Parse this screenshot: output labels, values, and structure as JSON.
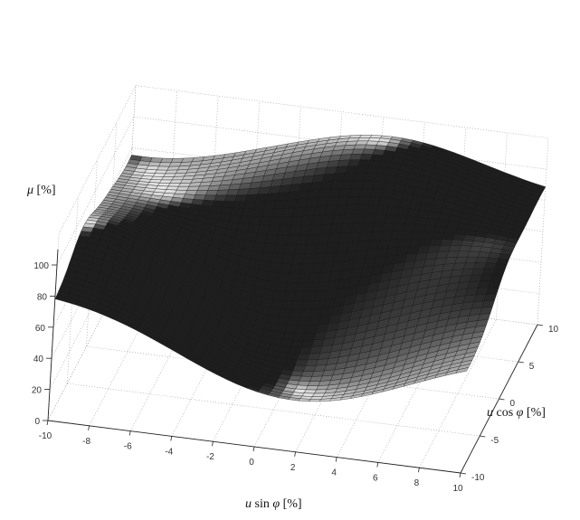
{
  "chart_data": {
    "type": "surface3d",
    "title": "",
    "xlabel": "u sin φ [%]",
    "ylabel": "u cos φ [%]",
    "zlabel": "μ [%]",
    "xlabel_parts": {
      "a": "u",
      "b": " sin ",
      "c": "φ",
      "d": " [%]"
    },
    "ylabel_parts": {
      "a": "u",
      "b": " cos ",
      "c": "φ",
      "d": " [%]"
    },
    "zlabel_parts": {
      "a": "μ",
      "b": " [%]"
    },
    "xlim": [
      -10,
      10
    ],
    "ylim": [
      -10,
      10
    ],
    "zlim": [
      0,
      120
    ],
    "x_ticks": [
      "-10",
      "-8",
      "-6",
      "-4",
      "-2",
      "0",
      "2",
      "4",
      "6",
      "8",
      "10"
    ],
    "y_ticks": [
      "-10",
      "-5",
      "0",
      "5",
      "10"
    ],
    "z_ticks": [
      "0",
      "20",
      "40",
      "60",
      "80",
      "100"
    ],
    "grid": true,
    "surface_shape": "saddle-like efficiency surface: minimum near x=2, y=-8 (~35%), maximum plateau (~110%) near x=0..4, y=5..10, ridge along x=-8..-4 rising to ~100%",
    "sample_points": [
      {
        "x": -8,
        "y": -10,
        "z": 90
      },
      {
        "x": -4,
        "y": -10,
        "z": 55
      },
      {
        "x": 0,
        "y": -10,
        "z": 38
      },
      {
        "x": 2,
        "y": -10,
        "z": 35
      },
      {
        "x": 6,
        "y": -10,
        "z": 60
      },
      {
        "x": 10,
        "y": -10,
        "z": 80
      },
      {
        "x": -8,
        "y": 0,
        "z": 95
      },
      {
        "x": 0,
        "y": 0,
        "z": 70
      },
      {
        "x": 10,
        "y": 0,
        "z": 95
      },
      {
        "x": -8,
        "y": 10,
        "z": 75
      },
      {
        "x": 0,
        "y": 10,
        "z": 110
      },
      {
        "x": 4,
        "y": 10,
        "z": 110
      },
      {
        "x": 10,
        "y": 10,
        "z": 95
      }
    ]
  }
}
